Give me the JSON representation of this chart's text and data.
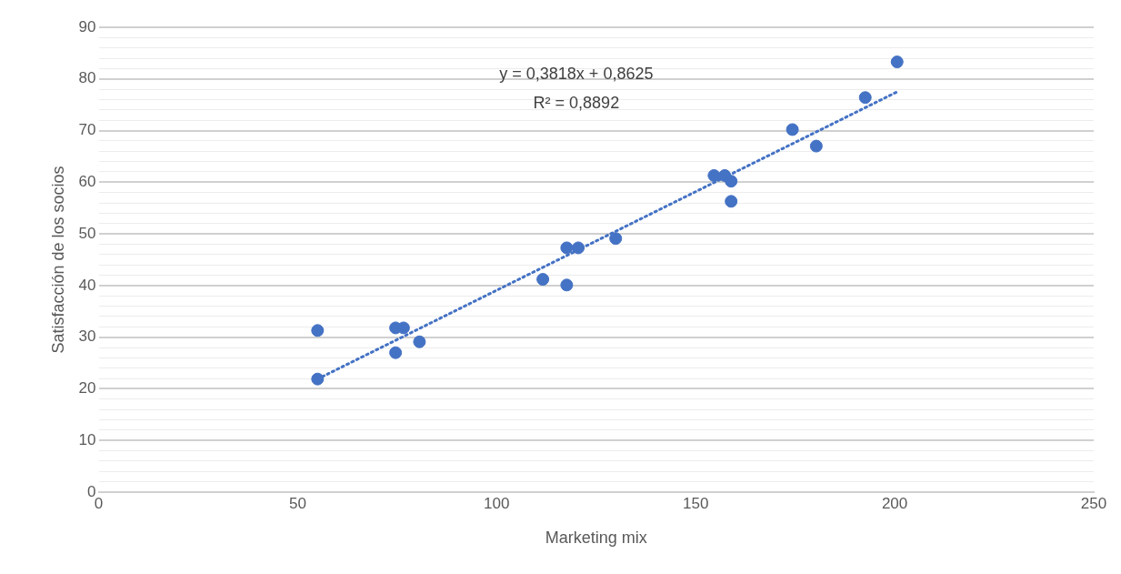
{
  "chart_data": {
    "type": "scatter",
    "xlabel": "Marketing mix",
    "ylabel": "Satisfacción de los socios",
    "series": [
      {
        "type": "scatter",
        "color": "#4472c4",
        "x": [
          55,
          55,
          74.6,
          76.6,
          74.6,
          80.6,
          111.6,
          117.6,
          117.6,
          120.5,
          129.9,
          154.6,
          157.3,
          158.9,
          158.9,
          174.3,
          180.3,
          192.6,
          200.6
        ],
        "values": [
          21.9,
          31.3,
          31.8,
          31.8,
          27.0,
          29.1,
          41.2,
          40.1,
          47.3,
          47.3,
          49.1,
          61.3,
          61.3,
          60.2,
          56.3,
          70.2,
          67.0,
          76.4,
          83.3
        ]
      },
      {
        "type": "line",
        "color": "#4472c4",
        "line_style": "dotted",
        "marker": "none",
        "x": [
          55,
          200.6
        ],
        "values": [
          21.9,
          77.5
        ]
      }
    ],
    "annotations": [
      "y = 0,3818x + 0,8625",
      "R² = 0,8892"
    ],
    "marker": "circle",
    "grid": "y",
    "legend": false,
    "xlim": [
      0,
      250
    ],
    "xticks": [
      0,
      50,
      100,
      150,
      200,
      250
    ],
    "ylim": [
      0,
      90
    ],
    "yticks": [
      0,
      {
        "value": 2,
        "label": null
      },
      {
        "value": 4,
        "label": null
      },
      {
        "value": 6,
        "label": null
      },
      {
        "value": 8,
        "label": null
      },
      10,
      {
        "value": 12,
        "label": null
      },
      {
        "value": 14,
        "label": null
      },
      {
        "value": 16,
        "label": null
      },
      {
        "value": 18,
        "label": null
      },
      20,
      {
        "value": 22,
        "label": null
      },
      {
        "value": 24,
        "label": null
      },
      {
        "value": 26,
        "label": null
      },
      {
        "value": 28,
        "label": null
      },
      30,
      {
        "value": 32,
        "label": null
      },
      {
        "value": 34,
        "label": null
      },
      {
        "value": 36,
        "label": null
      },
      {
        "value": 38,
        "label": null
      },
      40,
      {
        "value": 42,
        "label": null
      },
      {
        "value": 44,
        "label": null
      },
      {
        "value": 46,
        "label": null
      },
      {
        "value": 48,
        "label": null
      },
      50,
      {
        "value": 52,
        "label": null
      },
      {
        "value": 54,
        "label": null
      },
      {
        "value": 56,
        "label": null
      },
      {
        "value": 58,
        "label": null
      },
      60,
      {
        "value": 62,
        "label": null
      },
      {
        "value": 64,
        "label": null
      },
      {
        "value": 66,
        "label": null
      },
      {
        "value": 68,
        "label": null
      },
      70,
      {
        "value": 72,
        "label": null
      },
      {
        "value": 74,
        "label": null
      },
      {
        "value": 76,
        "label": null
      },
      {
        "value": 78,
        "label": null
      },
      80,
      {
        "value": 82,
        "label": null
      },
      {
        "value": 84,
        "label": null
      },
      {
        "value": 86,
        "label": null
      },
      {
        "value": 88,
        "label": null
      },
      90
    ]
  }
}
